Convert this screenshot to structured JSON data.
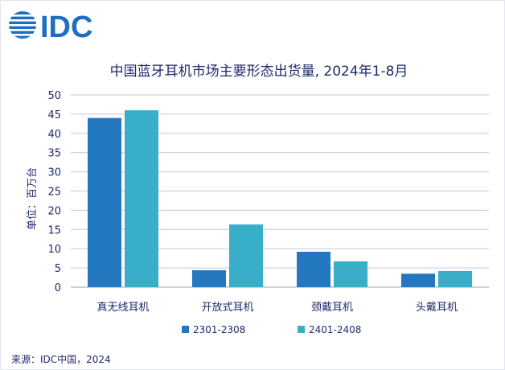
{
  "brand": {
    "name": "IDC",
    "color": "#1f6fc0"
  },
  "footer": {
    "source": "来源：IDC中国，2024"
  },
  "chart_data": {
    "type": "bar",
    "title": "中国蓝牙耳机市场主要形态出货量, 2024年1-8月",
    "ylabel": "单位：百万台",
    "xlabel": "",
    "ylim": [
      0,
      50
    ],
    "yticks": [
      0,
      5,
      10,
      15,
      20,
      25,
      30,
      35,
      40,
      45,
      50
    ],
    "categories": [
      "真无线耳机",
      "开放式耳机",
      "颈戴耳机",
      "头戴耳机"
    ],
    "series": [
      {
        "name": "2301-2308",
        "color": "#2478bf",
        "values": [
          44.0,
          4.4,
          9.2,
          3.5
        ]
      },
      {
        "name": "2401-2408",
        "color": "#38aec9",
        "values": [
          46.0,
          16.3,
          6.7,
          4.2
        ]
      }
    ],
    "grid": true,
    "legend": "bottom"
  }
}
